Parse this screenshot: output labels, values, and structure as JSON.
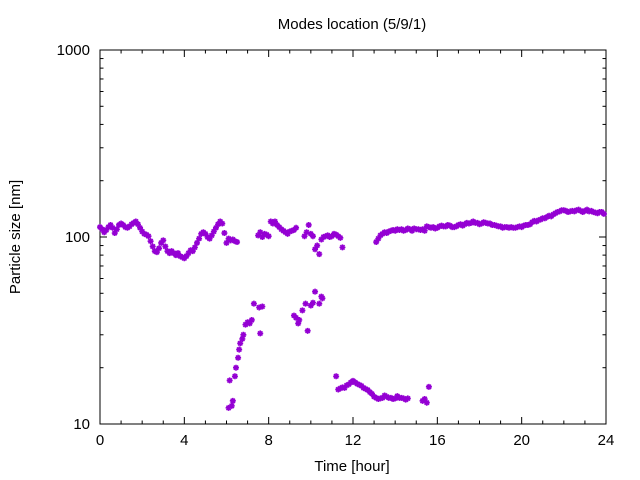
{
  "chart_data": {
    "type": "scatter",
    "title": "Modes location (5/9/1)",
    "xlabel": "Time [hour]",
    "ylabel": "Particle size [nm]",
    "xlim": [
      0,
      24
    ],
    "ylim": [
      10,
      1000
    ],
    "yscale": "log",
    "grid": false,
    "legend": "none",
    "marker_color": "#9400d3",
    "x_ticks": [
      0,
      4,
      8,
      12,
      16,
      20,
      24
    ],
    "x_tick_labels": [
      "0",
      "4",
      "8",
      "12",
      "16",
      "20",
      "24"
    ],
    "y_ticks": [
      10,
      100,
      1000
    ],
    "y_tick_labels": [
      "10",
      "100",
      "1000"
    ],
    "series": [
      {
        "points": [
          [
            0.0,
            113
          ],
          [
            0.1,
            110
          ],
          [
            0.2,
            106
          ],
          [
            0.3,
            109
          ],
          [
            0.4,
            113
          ],
          [
            0.5,
            116
          ],
          [
            0.6,
            112
          ],
          [
            0.7,
            105
          ],
          [
            0.8,
            110
          ],
          [
            0.9,
            116
          ],
          [
            1.0,
            118
          ],
          [
            1.1,
            116
          ],
          [
            1.2,
            113
          ],
          [
            1.3,
            112
          ],
          [
            1.4,
            114
          ],
          [
            1.5,
            117
          ],
          [
            1.6,
            119
          ],
          [
            1.7,
            121
          ],
          [
            1.8,
            117
          ],
          [
            1.9,
            112
          ],
          [
            2.0,
            107
          ],
          [
            2.1,
            104
          ],
          [
            2.2,
            103
          ],
          [
            2.3,
            101
          ],
          [
            2.4,
            95
          ],
          [
            2.5,
            89
          ],
          [
            2.6,
            84
          ],
          [
            2.7,
            83
          ],
          [
            2.8,
            87
          ],
          [
            2.9,
            93
          ],
          [
            3.0,
            96
          ],
          [
            3.1,
            89
          ],
          [
            3.2,
            84
          ],
          [
            3.3,
            82
          ],
          [
            3.4,
            84
          ],
          [
            3.5,
            82
          ],
          [
            3.6,
            80
          ],
          [
            3.7,
            82
          ],
          [
            3.8,
            79
          ],
          [
            3.9,
            78
          ],
          [
            4.0,
            77
          ],
          [
            4.1,
            79
          ],
          [
            4.2,
            82
          ],
          [
            4.3,
            85
          ],
          [
            4.4,
            84
          ],
          [
            4.5,
            88
          ],
          [
            4.6,
            93
          ],
          [
            4.7,
            98
          ],
          [
            4.8,
            104
          ],
          [
            4.9,
            106
          ],
          [
            5.0,
            104
          ],
          [
            5.1,
            100
          ],
          [
            5.2,
            98
          ],
          [
            5.3,
            102
          ],
          [
            5.4,
            107
          ],
          [
            5.5,
            112
          ],
          [
            5.6,
            117
          ],
          [
            5.7,
            121
          ],
          [
            5.8,
            118
          ],
          [
            5.9,
            105
          ],
          [
            6.0,
            93
          ],
          [
            6.1,
            98
          ],
          [
            6.2,
            96
          ],
          [
            6.3,
            97
          ],
          [
            6.4,
            95
          ],
          [
            6.5,
            94
          ],
          [
            7.5,
            102
          ],
          [
            7.6,
            106
          ],
          [
            7.7,
            100
          ],
          [
            7.8,
            104
          ],
          [
            7.9,
            103
          ],
          [
            8.0,
            101
          ],
          [
            8.1,
            121
          ],
          [
            8.2,
            118
          ],
          [
            8.3,
            121
          ],
          [
            8.4,
            116
          ],
          [
            8.5,
            113
          ],
          [
            8.6,
            110
          ],
          [
            8.7,
            108
          ],
          [
            8.8,
            106
          ],
          [
            8.9,
            104
          ],
          [
            9.0,
            107
          ],
          [
            9.1,
            108
          ],
          [
            9.2,
            109
          ],
          [
            9.3,
            112
          ],
          [
            9.7,
            101
          ],
          [
            9.8,
            106
          ],
          [
            9.9,
            116
          ],
          [
            10.0,
            104
          ],
          [
            10.1,
            101
          ],
          [
            10.2,
            86
          ],
          [
            10.3,
            90
          ],
          [
            10.4,
            81
          ],
          [
            10.5,
            97
          ],
          [
            10.6,
            100
          ],
          [
            10.7,
            101
          ],
          [
            10.8,
            102
          ],
          [
            10.9,
            100
          ],
          [
            11.0,
            101
          ],
          [
            11.1,
            104
          ],
          [
            11.2,
            103
          ],
          [
            11.3,
            101
          ],
          [
            11.4,
            99
          ],
          [
            11.5,
            88
          ],
          [
            13.1,
            94
          ],
          [
            13.2,
            98
          ],
          [
            13.3,
            102
          ],
          [
            13.4,
            104
          ],
          [
            13.5,
            106
          ],
          [
            13.6,
            105
          ],
          [
            13.7,
            107
          ],
          [
            13.8,
            108
          ],
          [
            13.9,
            109
          ],
          [
            14.0,
            108
          ],
          [
            14.1,
            110
          ],
          [
            14.2,
            109
          ],
          [
            14.3,
            110
          ],
          [
            14.4,
            108
          ],
          [
            14.5,
            109
          ],
          [
            14.6,
            111
          ],
          [
            14.7,
            110
          ],
          [
            14.8,
            108
          ],
          [
            14.9,
            111
          ],
          [
            15.0,
            110
          ],
          [
            15.1,
            110
          ],
          [
            15.2,
            109
          ],
          [
            15.3,
            110
          ],
          [
            15.4,
            108
          ],
          [
            15.5,
            114
          ],
          [
            15.6,
            113
          ],
          [
            15.7,
            112
          ],
          [
            15.8,
            113
          ],
          [
            15.9,
            111
          ],
          [
            16.0,
            112
          ],
          [
            16.1,
            114
          ],
          [
            16.2,
            115
          ],
          [
            16.3,
            114
          ],
          [
            16.4,
            114
          ],
          [
            16.5,
            116
          ],
          [
            16.6,
            115
          ],
          [
            16.7,
            113
          ],
          [
            16.8,
            113
          ],
          [
            16.9,
            114
          ],
          [
            17.0,
            116
          ],
          [
            17.1,
            117
          ],
          [
            17.2,
            115
          ],
          [
            17.3,
            117
          ],
          [
            17.4,
            119
          ],
          [
            17.5,
            118
          ],
          [
            17.6,
            119
          ],
          [
            17.7,
            121
          ],
          [
            17.8,
            119
          ],
          [
            17.9,
            119
          ],
          [
            18.0,
            117
          ],
          [
            18.1,
            118
          ],
          [
            18.2,
            120
          ],
          [
            18.3,
            119
          ],
          [
            18.4,
            118
          ],
          [
            18.5,
            118
          ],
          [
            18.6,
            116
          ],
          [
            18.7,
            116
          ],
          [
            18.8,
            115
          ],
          [
            18.9,
            114
          ],
          [
            19.0,
            114
          ],
          [
            19.1,
            112
          ],
          [
            19.2,
            113
          ],
          [
            19.3,
            113
          ],
          [
            19.4,
            112
          ],
          [
            19.5,
            113
          ],
          [
            19.6,
            112
          ],
          [
            19.7,
            112
          ],
          [
            19.8,
            113
          ],
          [
            19.9,
            114
          ],
          [
            20.0,
            113
          ],
          [
            20.1,
            115
          ],
          [
            20.2,
            116
          ],
          [
            20.3,
            116
          ],
          [
            20.4,
            117
          ],
          [
            20.5,
            120
          ],
          [
            20.6,
            122
          ],
          [
            20.7,
            121
          ],
          [
            20.8,
            123
          ],
          [
            20.9,
            124
          ],
          [
            21.0,
            126
          ],
          [
            21.1,
            126
          ],
          [
            21.2,
            128
          ],
          [
            21.3,
            130
          ],
          [
            21.4,
            129
          ],
          [
            21.5,
            132
          ],
          [
            21.6,
            134
          ],
          [
            21.7,
            136
          ],
          [
            21.8,
            137
          ],
          [
            21.9,
            139
          ],
          [
            22.0,
            139
          ],
          [
            22.1,
            138
          ],
          [
            22.2,
            136
          ],
          [
            22.3,
            137
          ],
          [
            22.4,
            138
          ],
          [
            22.5,
            137
          ],
          [
            22.6,
            139
          ],
          [
            22.7,
            140
          ],
          [
            22.8,
            138
          ],
          [
            22.9,
            136
          ],
          [
            23.0,
            138
          ],
          [
            23.1,
            140
          ],
          [
            23.2,
            137
          ],
          [
            23.3,
            138
          ],
          [
            23.4,
            136
          ],
          [
            23.5,
            135
          ],
          [
            23.6,
            134
          ],
          [
            23.7,
            136
          ],
          [
            23.8,
            136
          ],
          [
            23.9,
            133
          ],
          [
            6.1,
            12.2
          ],
          [
            6.15,
            17.1
          ],
          [
            6.25,
            12.5
          ],
          [
            6.3,
            13.3
          ],
          [
            6.4,
            18.0
          ],
          [
            6.45,
            20.0
          ],
          [
            6.55,
            22.6
          ],
          [
            6.6,
            25.0
          ],
          [
            6.65,
            27.0
          ],
          [
            6.75,
            28.5
          ],
          [
            6.8,
            30.0
          ],
          [
            6.9,
            34.0
          ],
          [
            7.0,
            35.0
          ],
          [
            7.1,
            34.5
          ],
          [
            7.2,
            36.0
          ],
          [
            7.3,
            44.0
          ],
          [
            7.55,
            42.0
          ],
          [
            7.6,
            30.5
          ],
          [
            7.7,
            42.5
          ],
          [
            9.2,
            38.0
          ],
          [
            9.3,
            37.0
          ],
          [
            9.4,
            34.5
          ],
          [
            9.45,
            36.0
          ],
          [
            9.6,
            40.5
          ],
          [
            9.75,
            44.0
          ],
          [
            9.85,
            31.5
          ],
          [
            10.0,
            43.0
          ],
          [
            10.1,
            44.5
          ],
          [
            10.2,
            51.0
          ],
          [
            10.4,
            44.0
          ],
          [
            10.5,
            48.0
          ],
          [
            10.55,
            47.0
          ],
          [
            11.2,
            18.0
          ],
          [
            11.3,
            15.3
          ],
          [
            11.4,
            15.5
          ],
          [
            11.5,
            15.7
          ],
          [
            11.6,
            15.6
          ],
          [
            11.7,
            16.1
          ],
          [
            11.8,
            16.3
          ],
          [
            11.9,
            16.7
          ],
          [
            12.0,
            17.0
          ],
          [
            12.1,
            16.7
          ],
          [
            12.2,
            16.4
          ],
          [
            12.3,
            16.2
          ],
          [
            12.4,
            16.0
          ],
          [
            12.5,
            15.6
          ],
          [
            12.6,
            15.4
          ],
          [
            12.7,
            15.2
          ],
          [
            12.8,
            14.8
          ],
          [
            12.9,
            14.5
          ],
          [
            13.0,
            14.0
          ],
          [
            13.1,
            13.8
          ],
          [
            13.2,
            13.6
          ],
          [
            13.3,
            13.7
          ],
          [
            13.4,
            13.8
          ],
          [
            13.5,
            14.2
          ],
          [
            13.6,
            14.0
          ],
          [
            13.7,
            13.8
          ],
          [
            13.8,
            13.8
          ],
          [
            13.9,
            13.6
          ],
          [
            14.0,
            13.7
          ],
          [
            14.1,
            14.1
          ],
          [
            14.2,
            13.8
          ],
          [
            14.3,
            13.8
          ],
          [
            14.4,
            13.7
          ],
          [
            14.5,
            13.5
          ],
          [
            14.6,
            13.7
          ],
          [
            15.3,
            13.3
          ],
          [
            15.4,
            13.6
          ],
          [
            15.5,
            13.0
          ],
          [
            15.6,
            15.8
          ]
        ]
      }
    ]
  }
}
